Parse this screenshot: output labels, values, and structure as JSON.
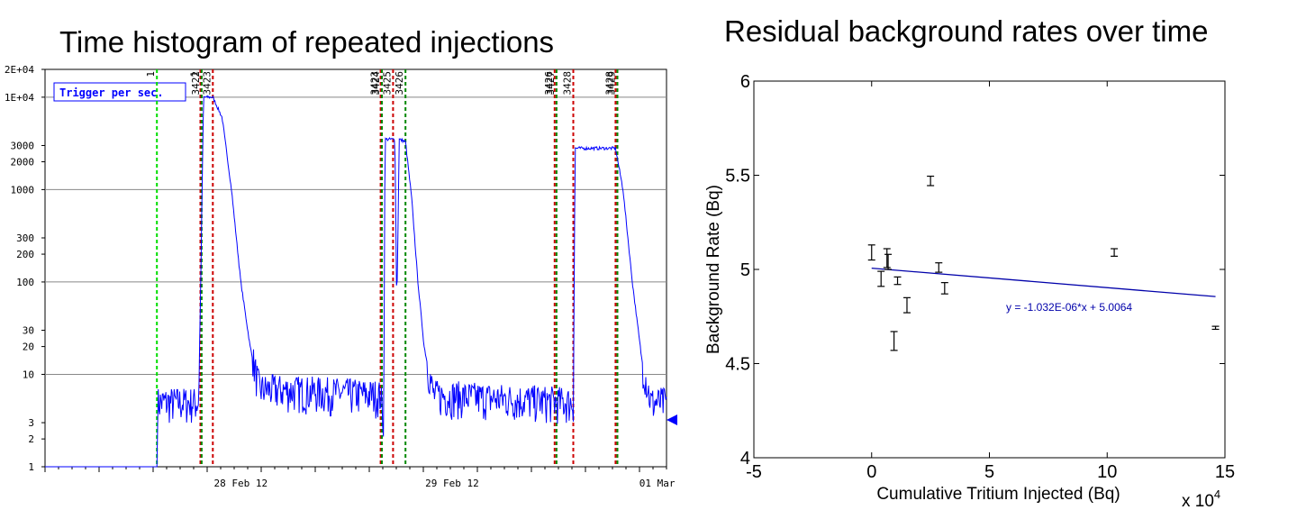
{
  "left_panel": {
    "title": "Time histogram of repeated injections",
    "legend_label": "Trigger per sec."
  },
  "right_panel": {
    "title": "Residual background rates over time",
    "fit_equation": "y = -1.032E-06*x + 5.0064",
    "x_multiplier": "x 10^4"
  },
  "chart_data": [
    {
      "type": "line",
      "title": "Time histogram of repeated injections",
      "yscale": "log",
      "ylim": [
        1,
        20000
      ],
      "y_ticks": [
        1,
        2,
        3,
        10,
        20,
        30,
        100,
        200,
        300,
        1000,
        2000,
        3000,
        10000,
        20000
      ],
      "y_tick_labels": [
        "1",
        "2",
        "3",
        "10",
        "20",
        "30",
        "100",
        "200",
        "300",
        "1000",
        "2000",
        "3000",
        "1E+04",
        "2E+04"
      ],
      "x_tick_labels": [
        "28 Feb 12",
        "29 Feb 12",
        "01 Mar"
      ],
      "legend": "Trigger per sec.",
      "grid": true,
      "series_color": "#0000ff",
      "markers": [
        {
          "label": "1",
          "color": "#00dd00",
          "style": "dashed",
          "pos": 0.18
        },
        {
          "label": "1",
          "color": "#cc0000",
          "style": "dashed",
          "pos": 0.25
        },
        {
          "label": "3422",
          "color": "#008800",
          "style": "dashed",
          "pos": 0.252
        },
        {
          "label": "3423",
          "color": "#cc0000",
          "style": "dashed",
          "pos": 0.27
        },
        {
          "label": "3423",
          "color": "#cc0000",
          "style": "dashed",
          "pos": 0.54
        },
        {
          "label": "3424",
          "color": "#008800",
          "style": "dashed",
          "pos": 0.542
        },
        {
          "label": "3425",
          "color": "#cc0000",
          "style": "dashed",
          "pos": 0.56
        },
        {
          "label": "3426",
          "color": "#008800",
          "style": "dashed",
          "pos": 0.58
        },
        {
          "label": "3426",
          "color": "#cc0000",
          "style": "dashed",
          "pos": 0.82
        },
        {
          "label": "3427",
          "color": "#008800",
          "style": "dashed",
          "pos": 0.823
        },
        {
          "label": "3428",
          "color": "#cc0000",
          "style": "dashed",
          "pos": 0.85
        },
        {
          "label": "3428",
          "color": "#cc0000",
          "style": "dashed",
          "pos": 0.918
        },
        {
          "label": "3429",
          "color": "#008800",
          "style": "dashed",
          "pos": 0.921
        }
      ],
      "profile": [
        {
          "t": 0.0,
          "y": 1
        },
        {
          "t": 0.18,
          "y": 1
        },
        {
          "t": 0.181,
          "y": 5
        },
        {
          "t": 0.247,
          "y": 5
        },
        {
          "t": 0.25,
          "y": 60
        },
        {
          "t": 0.255,
          "y": 10000
        },
        {
          "t": 0.27,
          "y": 10000
        },
        {
          "t": 0.285,
          "y": 6000
        },
        {
          "t": 0.3,
          "y": 1000
        },
        {
          "t": 0.315,
          "y": 100
        },
        {
          "t": 0.33,
          "y": 20
        },
        {
          "t": 0.345,
          "y": 7
        },
        {
          "t": 0.54,
          "y": 6
        },
        {
          "t": 0.545,
          "y": 3
        },
        {
          "t": 0.547,
          "y": 3500
        },
        {
          "t": 0.563,
          "y": 3500
        },
        {
          "t": 0.566,
          "y": 50
        },
        {
          "t": 0.57,
          "y": 3500
        },
        {
          "t": 0.58,
          "y": 3300
        },
        {
          "t": 0.59,
          "y": 800
        },
        {
          "t": 0.6,
          "y": 100
        },
        {
          "t": 0.61,
          "y": 20
        },
        {
          "t": 0.625,
          "y": 6
        },
        {
          "t": 0.85,
          "y": 5
        },
        {
          "t": 0.853,
          "y": 2800
        },
        {
          "t": 0.918,
          "y": 2800
        },
        {
          "t": 0.93,
          "y": 1000
        },
        {
          "t": 0.945,
          "y": 100
        },
        {
          "t": 0.96,
          "y": 15
        },
        {
          "t": 0.975,
          "y": 5
        },
        {
          "t": 1.0,
          "y": 5
        }
      ]
    },
    {
      "type": "scatter",
      "title": "Residual background rates over time",
      "xlabel": "Cumulative Tritium Injected (Bq)",
      "ylabel": "Background Rate (Bq)",
      "xlim": [
        -50000,
        150000
      ],
      "ylim": [
        4,
        6
      ],
      "x_ticks": [
        -50000,
        0,
        50000,
        100000,
        150000
      ],
      "x_tick_labels": [
        "-5",
        "0",
        "5",
        "10",
        "15"
      ],
      "y_ticks": [
        4,
        4.5,
        5,
        5.5,
        6
      ],
      "y_tick_labels": [
        "4",
        "4.5",
        "5",
        "5.5",
        "6"
      ],
      "points": [
        {
          "x": 0,
          "y": 5.09,
          "err": 0.04
        },
        {
          "x": 4000,
          "y": 4.95,
          "err": 0.04
        },
        {
          "x": 6500,
          "y": 5.06,
          "err": 0.05
        },
        {
          "x": 7000,
          "y": 5.04,
          "err": 0.04
        },
        {
          "x": 9500,
          "y": 4.62,
          "err": 0.05
        },
        {
          "x": 11000,
          "y": 4.94,
          "err": 0.02
        },
        {
          "x": 15000,
          "y": 4.81,
          "err": 0.04
        },
        {
          "x": 25000,
          "y": 5.47,
          "err": 0.025
        },
        {
          "x": 28500,
          "y": 5.01,
          "err": 0.025
        },
        {
          "x": 31000,
          "y": 4.9,
          "err": 0.03
        },
        {
          "x": 103000,
          "y": 5.09,
          "err": 0.02
        },
        {
          "x": 146000,
          "y": 4.69,
          "err": 0.008
        }
      ],
      "fit": {
        "slope": -1.032e-06,
        "intercept": 5.0064,
        "x_range": [
          0,
          146000
        ],
        "color": "#0000aa"
      },
      "fit_label": "y = -1.032E-06*x + 5.0064"
    }
  ]
}
